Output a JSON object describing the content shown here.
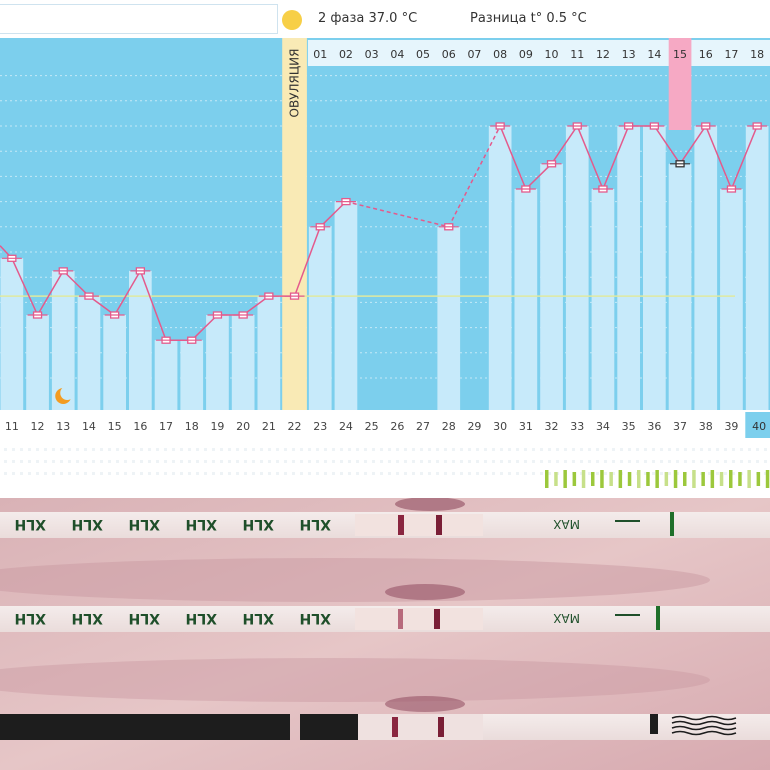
{
  "header": {
    "phase_label": "2 фаза 37.0 °C",
    "diff_label": "Разница t° 0.5 °C"
  },
  "ovulation_label": "ОВУЛЯЦИЯ",
  "photo_labels": {
    "strip_brand": "XLH",
    "max_label": "MAX"
  },
  "chart_data": {
    "type": "bar",
    "cycle_days": [
      "11",
      "12",
      "13",
      "14",
      "15",
      "16",
      "17",
      "18",
      "19",
      "20",
      "21",
      "22",
      "23",
      "24",
      "25",
      "26",
      "27",
      "28",
      "29",
      "30",
      "31",
      "32",
      "33",
      "34",
      "35",
      "36",
      "37",
      "38",
      "39",
      "40"
    ],
    "phase_day_labels": [
      "01",
      "02",
      "03",
      "04",
      "05",
      "06",
      "07",
      "08",
      "09",
      "10",
      "11",
      "12",
      "13",
      "14",
      "15",
      "16",
      "17",
      "18"
    ],
    "temperature_levels": [
      9.5,
      5,
      8.5,
      6.5,
      5,
      8.5,
      3,
      3,
      5,
      5,
      6.5,
      6.5,
      12,
      14,
      null,
      null,
      null,
      12,
      null,
      20,
      15,
      17,
      20,
      15,
      20,
      20,
      17,
      20,
      15,
      20
    ],
    "coverline_level": 6.5,
    "ovulation_day": "22",
    "current_day": "40",
    "highlighted_phase_day": "15",
    "moon_day": "13",
    "colors": {
      "background": "#7ccfed",
      "bar": "#c7eafa",
      "line": "#e45a8c",
      "ovulation": "#f9eab5",
      "highlight": "#f6a9c4",
      "coverline": "#dfe9a0",
      "current_day": "#7ccfed"
    }
  }
}
